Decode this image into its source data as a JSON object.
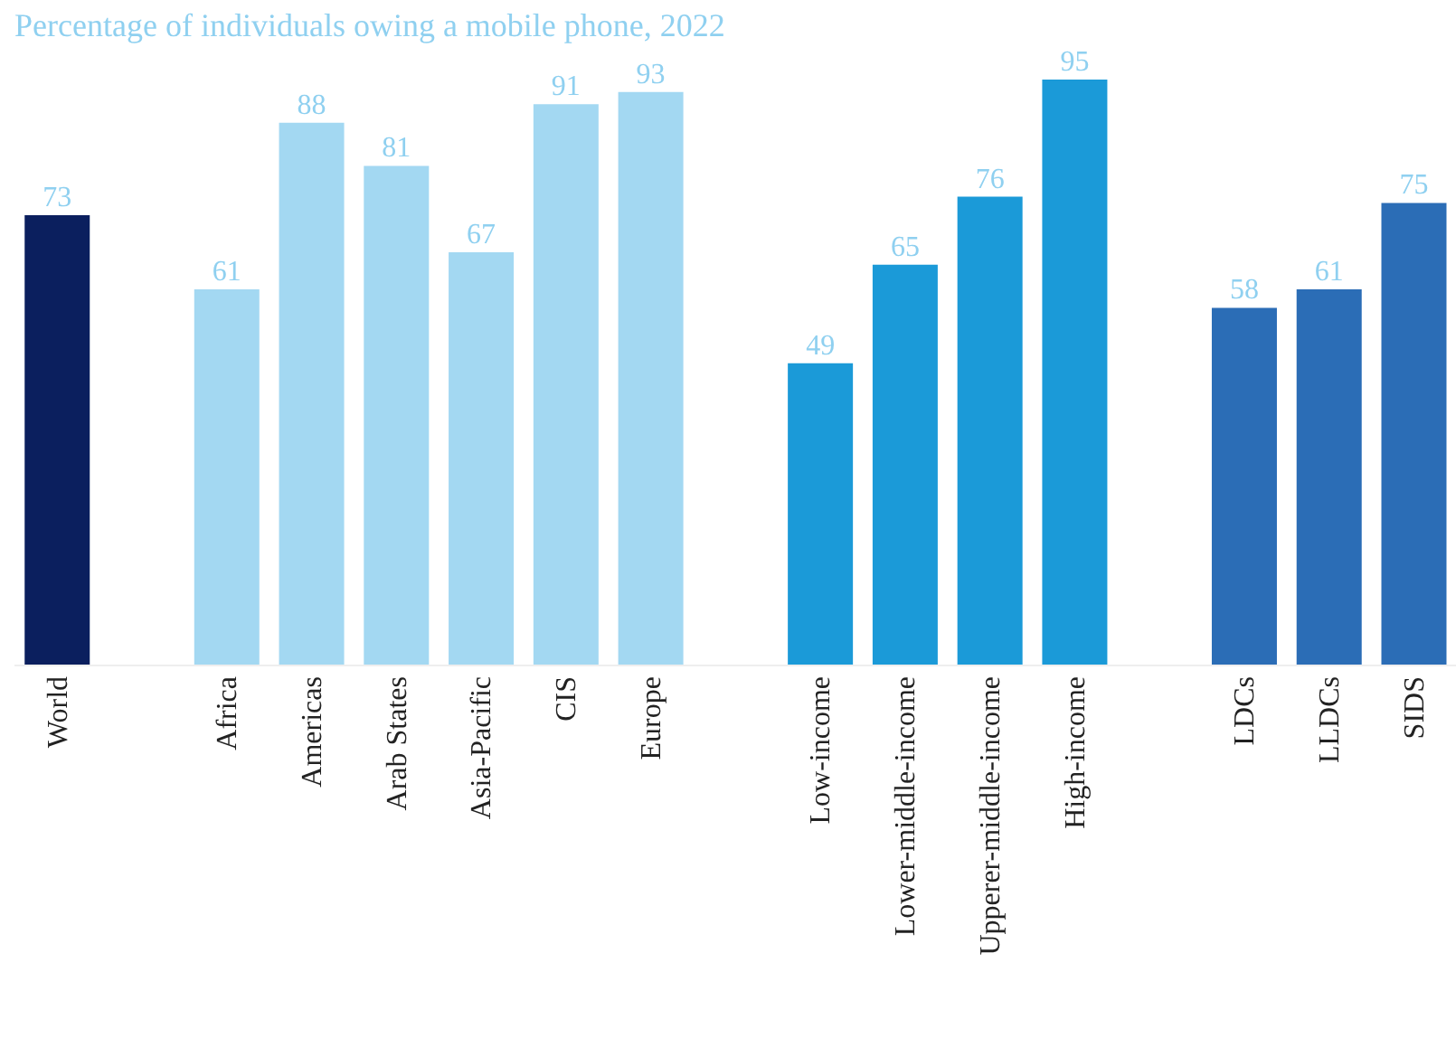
{
  "chart_data": {
    "type": "bar",
    "title": "Percentage of individuals owing a mobile phone, 2022",
    "categories": [
      "World",
      null,
      "Africa",
      "Americas",
      "Arab States",
      "Asia-Pacific",
      "CIS",
      "Europe",
      null,
      "Low-income",
      "Lower-middle-income",
      "Upperer-middle-income",
      "High-income",
      null,
      "LDCs",
      "LLDCs",
      "SIDS"
    ],
    "values": [
      73,
      null,
      61,
      88,
      81,
      67,
      91,
      93,
      null,
      49,
      65,
      76,
      95,
      null,
      58,
      61,
      75
    ],
    "colors": [
      "#0b1f5e",
      "#a3d8f2",
      "#a3d8f2",
      "#a3d8f2",
      "#a3d8f2",
      "#a3d8f2",
      "#a3d8f2",
      "#a3d8f2",
      "#1b9ad8",
      "#1b9ad8",
      "#1b9ad8",
      "#1b9ad8",
      "#1b9ad8",
      "#2b6db6",
      "#2b6db6",
      "#2b6db6",
      "#2b6db6"
    ],
    "data_labels": true,
    "grid": false,
    "legend": false
  }
}
